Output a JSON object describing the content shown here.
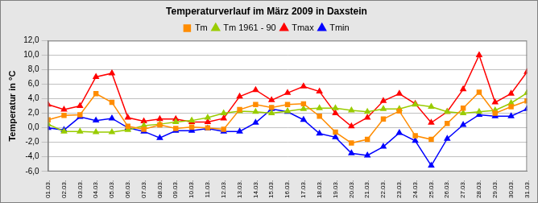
{
  "chart_data": {
    "type": "line",
    "title": "Temperaturverlauf im März 2009 in Daxstein",
    "y_label": "Temperatur in °C",
    "categories": [
      "01.03.",
      "02.03.",
      "03.03.",
      "04.03.",
      "05.03.",
      "06.03.",
      "07.03.",
      "08.03.",
      "09.03.",
      "10.03.",
      "11.03.",
      "12.03.",
      "13.03.",
      "14.03.",
      "15.03.",
      "16.03.",
      "17.03.",
      "18.03.",
      "19.03.",
      "20.03.",
      "21.03.",
      "22.03.",
      "23.03.",
      "24.03.",
      "25.03.",
      "26.03.",
      "27.03.",
      "28.03.",
      "29.03.",
      "30.03.",
      "31.03."
    ],
    "series": [
      {
        "name": "Tm",
        "color": "#ff8c00",
        "marker": "square",
        "line_style": "solid",
        "values": [
          1.1,
          1.7,
          1.8,
          4.7,
          3.5,
          0.2,
          -0.2,
          0.4,
          -0.1,
          0.1,
          0.0,
          -0.2,
          2.5,
          3.2,
          2.8,
          3.2,
          3.3,
          1.6,
          -0.6,
          -2.1,
          -1.6,
          1.2,
          2.3,
          -1.1,
          -1.6,
          0.6,
          2.7,
          4.9,
          2.0,
          2.9,
          3.7
        ]
      },
      {
        "name": "Tm 1961 - 90",
        "color": "#99cc00",
        "marker": "triangle",
        "line_style": "solid",
        "values": [
          0.5,
          -0.5,
          -0.5,
          -0.6,
          -0.6,
          -0.3,
          0.3,
          0.5,
          0.8,
          1.0,
          1.4,
          2.0,
          2.3,
          2.2,
          2.0,
          2.3,
          2.6,
          2.7,
          2.7,
          2.4,
          2.2,
          2.6,
          2.6,
          3.2,
          2.9,
          2.2,
          2.0,
          2.2,
          2.4,
          3.4,
          4.8
        ]
      },
      {
        "name": "Tmax",
        "color": "#ff0000",
        "marker": "triangle",
        "line_style": "solid",
        "values": [
          3.2,
          2.5,
          3.0,
          7.0,
          7.5,
          1.4,
          0.9,
          1.2,
          1.2,
          0.8,
          0.8,
          1.3,
          4.3,
          5.2,
          3.8,
          4.8,
          5.7,
          5.0,
          2.0,
          0.2,
          1.4,
          3.7,
          4.7,
          3.3,
          0.7,
          2.2,
          5.3,
          10.0,
          3.5,
          4.7,
          7.7
        ]
      },
      {
        "name": "Tmin",
        "color": "#0000ff",
        "marker": "triangle",
        "line_style": "solid",
        "values": [
          0.0,
          -0.3,
          1.5,
          1.0,
          1.3,
          0.0,
          -0.5,
          -1.4,
          -0.4,
          -0.4,
          -0.1,
          -0.5,
          -0.5,
          0.7,
          2.6,
          2.2,
          1.1,
          -0.8,
          -1.3,
          -3.5,
          -3.8,
          -2.6,
          -0.7,
          -1.8,
          -5.2,
          -1.5,
          0.4,
          1.8,
          1.6,
          1.6,
          2.6
        ]
      }
    ],
    "ylim": [
      -6,
      12
    ],
    "yticks": [
      {
        "value": -6,
        "label": "-6,0"
      },
      {
        "value": -4,
        "label": "-4,0"
      },
      {
        "value": -2,
        "label": "-2,0"
      },
      {
        "value": 0,
        "label": "0,0"
      },
      {
        "value": 2,
        "label": "2,0"
      },
      {
        "value": 4,
        "label": "4,0"
      },
      {
        "value": 6,
        "label": "6,0"
      },
      {
        "value": 8,
        "label": "8,0"
      },
      {
        "value": 10,
        "label": "10,0"
      },
      {
        "value": 12,
        "label": "12,0"
      }
    ],
    "grid": true,
    "legend": "top"
  }
}
